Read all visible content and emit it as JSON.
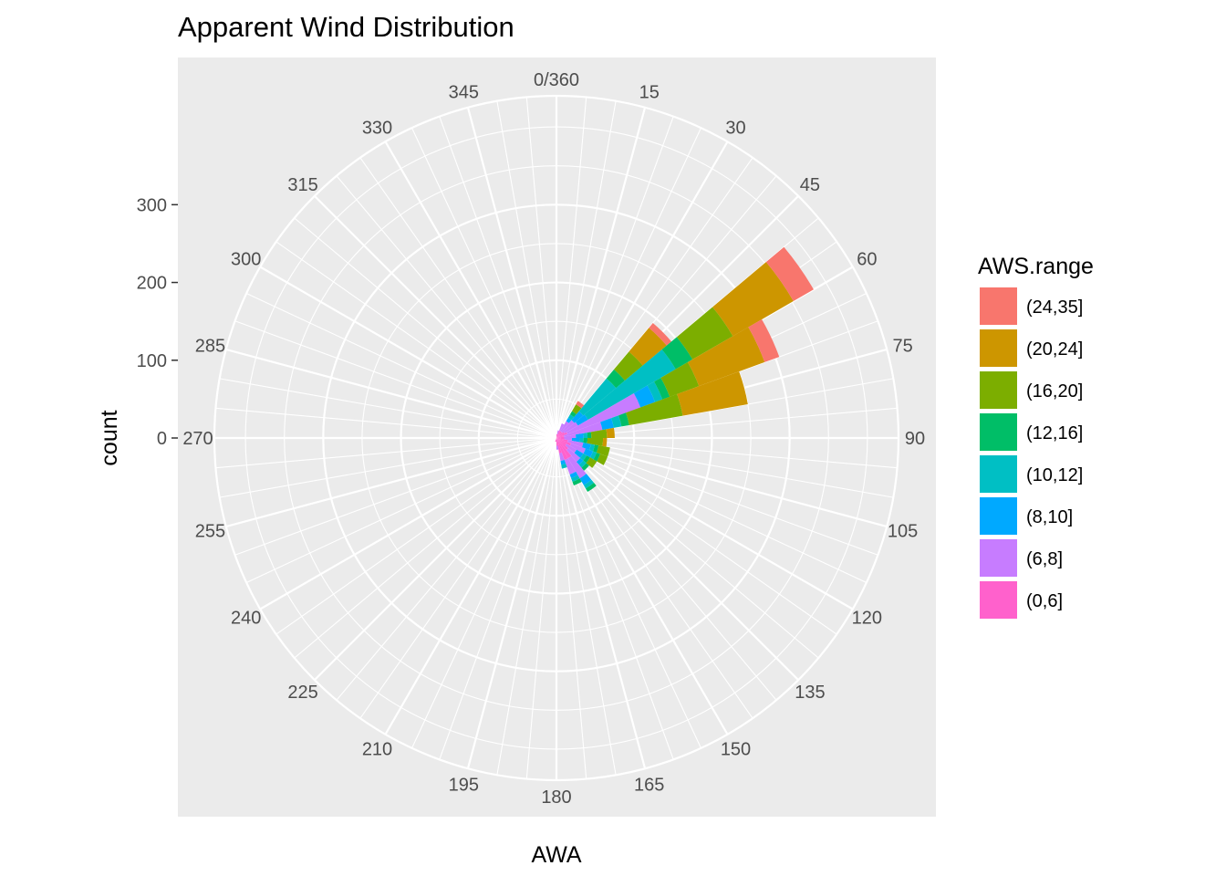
{
  "chart_data": {
    "type": "polar-stacked-bar",
    "title": "Apparent Wind Distribution",
    "xlabel": "AWA",
    "ylabel": "count",
    "coord": "polar",
    "theta_range": [
      0,
      360
    ],
    "theta_ticks": [
      0,
      15,
      30,
      45,
      60,
      75,
      90,
      105,
      120,
      135,
      150,
      165,
      180,
      195,
      210,
      225,
      240,
      255,
      270,
      285,
      300,
      315,
      330,
      345
    ],
    "theta_tick_labels": [
      "0/360",
      "15",
      "30",
      "45",
      "60",
      "75",
      "90",
      "105",
      "120",
      "135",
      "150",
      "165",
      "180",
      "195",
      "210",
      "225",
      "240",
      "255",
      "270",
      "285",
      "300",
      "315",
      "330",
      "345"
    ],
    "r_range": [
      0,
      440
    ],
    "r_ticks": [
      0,
      100,
      200,
      300
    ],
    "r_tick_labels": [
      "0",
      "100",
      "200",
      "300"
    ],
    "bin_width": 10,
    "legend": {
      "title": "AWS.range",
      "position": "right",
      "entries": [
        {
          "label": "(24,35]",
          "color": "#F8766D"
        },
        {
          "label": "(20,24]",
          "color": "#CD9600"
        },
        {
          "label": "(16,20]",
          "color": "#7CAE00"
        },
        {
          "label": "(12,16]",
          "color": "#00BE67"
        },
        {
          "label": "(10,12]",
          "color": "#00BFC4"
        },
        {
          "label": "(8,10]",
          "color": "#00A9FF"
        },
        {
          "label": "(6,8]",
          "color": "#C77CFF"
        },
        {
          "label": "(0,6]",
          "color": "#FF61CC"
        }
      ]
    },
    "stack_order_from_center": [
      "(0,6]",
      "(6,8]",
      "(8,10]",
      "(10,12]",
      "(12,16]",
      "(16,20]",
      "(20,24]",
      "(24,35]"
    ],
    "bins": [
      {
        "center": 45,
        "counts": {
          "(0,6]": 10,
          "(6,8]": 20,
          "(8,10]": 15,
          "(10,12]": 55,
          "(12,16]": 15,
          "(16,20]": 30,
          "(20,24]": 40,
          "(24,35]": 8
        }
      },
      {
        "center": 55,
        "counts": {
          "(0,6]": 12,
          "(6,8]": 20,
          "(8,10]": 15,
          "(10,12]": 130,
          "(12,16]": 25,
          "(16,20]": 60,
          "(20,24]": 90,
          "(24,35]": 30
        }
      },
      {
        "center": 65,
        "counts": {
          "(0,6]": 15,
          "(6,8]": 100,
          "(8,10]": 20,
          "(10,12]": 10,
          "(12,16]": 10,
          "(16,20]": 40,
          "(20,24]": 90,
          "(24,35]": 20
        }
      },
      {
        "center": 75,
        "counts": {
          "(0,6]": 10,
          "(6,8]": 50,
          "(8,10]": 15,
          "(10,12]": 10,
          "(12,16]": 10,
          "(16,20]": 70,
          "(20,24]": 85,
          "(24,35]": 0
        }
      },
      {
        "center": 35,
        "counts": {
          "(0,6]": 10,
          "(6,8]": 15,
          "(8,10]": 5,
          "(10,12]": 5,
          "(12,16]": 5,
          "(16,20]": 10,
          "(20,24]": 0,
          "(24,35]": 5
        }
      },
      {
        "center": 85,
        "counts": {
          "(0,6]": 10,
          "(6,8]": 15,
          "(8,10]": 10,
          "(10,12]": 5,
          "(12,16]": 5,
          "(16,20]": 20,
          "(20,24]": 10,
          "(24,35]": 0
        }
      },
      {
        "center": 95,
        "counts": {
          "(0,6]": 10,
          "(6,8]": 10,
          "(8,10]": 10,
          "(10,12]": 5,
          "(12,16]": 5,
          "(16,20]": 20,
          "(20,24]": 5,
          "(24,35]": 0
        }
      },
      {
        "center": 105,
        "counts": {
          "(0,6]": 15,
          "(6,8]": 20,
          "(8,10]": 10,
          "(10,12]": 5,
          "(12,16]": 5,
          "(16,20]": 15,
          "(20,24]": 0,
          "(24,35]": 0
        }
      },
      {
        "center": 115,
        "counts": {
          "(0,6]": 20,
          "(6,8]": 20,
          "(8,10]": 10,
          "(10,12]": 5,
          "(12,16]": 5,
          "(16,20]": 10,
          "(20,24]": 0,
          "(24,35]": 0
        }
      },
      {
        "center": 125,
        "counts": {
          "(0,6]": 15,
          "(6,8]": 15,
          "(8,10]": 10,
          "(10,12]": 5,
          "(12,16]": 5,
          "(16,20]": 10,
          "(20,24]": 0,
          "(24,35]": 0
        }
      },
      {
        "center": 135,
        "counts": {
          "(0,6]": 20,
          "(6,8]": 20,
          "(8,10]": 5,
          "(10,12]": 5,
          "(12,16]": 5,
          "(16,20]": 0,
          "(20,24]": 0,
          "(24,35]": 0
        }
      },
      {
        "center": 145,
        "counts": {
          "(0,6]": 30,
          "(6,8]": 30,
          "(8,10]": 10,
          "(10,12]": 5,
          "(12,16]": 5,
          "(16,20]": 0,
          "(20,24]": 0,
          "(24,35]": 0
        }
      },
      {
        "center": 155,
        "counts": {
          "(0,6]": 30,
          "(6,8]": 20,
          "(8,10]": 5,
          "(10,12]": 5,
          "(12,16]": 5,
          "(16,20]": 0,
          "(20,24]": 0,
          "(24,35]": 0
        }
      },
      {
        "center": 165,
        "counts": {
          "(0,6]": 20,
          "(6,8]": 10,
          "(8,10]": 5,
          "(10,12]": 5,
          "(12,16]": 0,
          "(16,20]": 0,
          "(20,24]": 0,
          "(24,35]": 0
        }
      },
      {
        "center": 175,
        "counts": {
          "(0,6]": 10,
          "(6,8]": 5,
          "(8,10]": 0,
          "(10,12]": 0,
          "(12,16]": 0,
          "(16,20]": 0,
          "(20,24]": 0,
          "(24,35]": 0
        }
      },
      {
        "center": 185,
        "counts": {
          "(0,6]": 5,
          "(6,8]": 0,
          "(8,10]": 0,
          "(10,12]": 0,
          "(12,16]": 0,
          "(16,20]": 0,
          "(20,24]": 0,
          "(24,35]": 0
        }
      },
      {
        "center": 195,
        "counts": {
          "(0,6]": 5,
          "(6,8]": 0,
          "(8,10]": 0,
          "(10,12]": 0,
          "(12,16]": 0,
          "(16,20]": 0,
          "(20,24]": 0,
          "(24,35]": 0
        }
      },
      {
        "center": 25,
        "counts": {
          "(0,6]": 10,
          "(6,8]": 10,
          "(8,10]": 0,
          "(10,12]": 0,
          "(12,16]": 0,
          "(16,20]": 0,
          "(20,24]": 0,
          "(24,35]": 0
        }
      },
      {
        "center": 15,
        "counts": {
          "(0,6]": 5,
          "(6,8]": 5,
          "(8,10]": 0,
          "(10,12]": 0,
          "(12,16]": 0,
          "(16,20]": 0,
          "(20,24]": 0,
          "(24,35]": 0
        }
      },
      {
        "center": 5,
        "counts": {
          "(0,6]": 5,
          "(6,8]": 0,
          "(8,10]": 0,
          "(10,12]": 0,
          "(12,16]": 0,
          "(16,20]": 0,
          "(20,24]": 0,
          "(24,35]": 0
        }
      }
    ],
    "colors": {
      "panel_bg": "#EBEBEB",
      "grid": "#FFFFFF",
      "tick_text": "#4D4D4D"
    }
  }
}
